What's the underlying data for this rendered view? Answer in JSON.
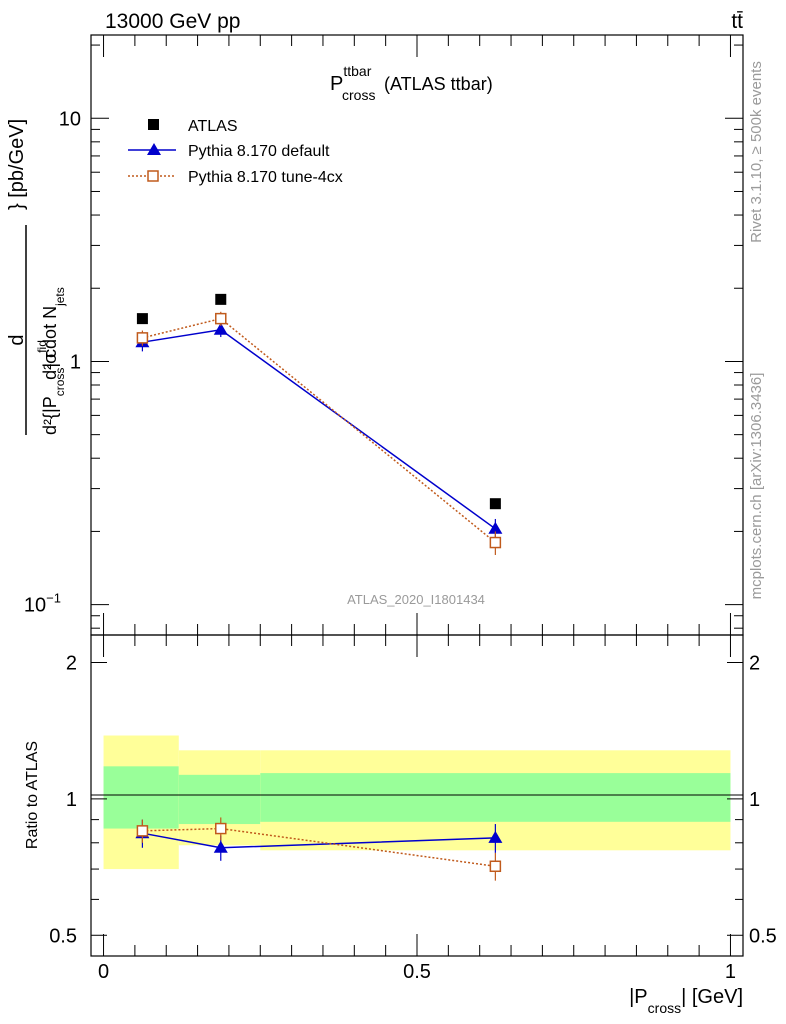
{
  "header": {
    "left": "13000 GeV pp",
    "right": "tt̄"
  },
  "plot_title": {
    "main": "P",
    "sup": "ttbar",
    "sub": "cross",
    "suffix": "(ATLAS ttbar)"
  },
  "side_labels": {
    "rivet": "Rivet 3.1.10, ≥ 500k events",
    "mcplots": "mcplots.cern.ch [arXiv:1306.3436]"
  },
  "watermark": "ATLAS_2020_I1801434",
  "colors": {
    "atlas": "#000000",
    "default": "#0000cc",
    "tune": "#c05a1c",
    "band_inner": "#99ff99",
    "band_outer": "#ffff99"
  },
  "chart_data": [
    {
      "type": "scatter",
      "panel": "main",
      "yscale": "log",
      "ylim": [
        0.075,
        22
      ],
      "xlim": [
        -0.02,
        1.02
      ],
      "ylabel": {
        "num": "d²σ",
        "num_sup": "fid",
        "den_pre": "d²{|P",
        "den_sub": "cross",
        "den_mid": "| cdot N",
        "den_sub2": "jets",
        "unit": "} [pb/GeV]"
      },
      "yticks": [
        {
          "value": 10,
          "label": "10"
        },
        {
          "value": 1,
          "label": "1"
        },
        {
          "value": 0.1,
          "label": "10",
          "sup": "−1"
        }
      ],
      "legend_placement": "top-left",
      "series": [
        {
          "name": "ATLAS",
          "marker": "square",
          "x": [
            0.062,
            0.187,
            0.625
          ],
          "y": [
            1.5,
            1.8,
            0.26
          ]
        },
        {
          "name": "Pythia 8.170 default",
          "marker": "triangle",
          "x": [
            0.062,
            0.187,
            0.625
          ],
          "y": [
            1.2,
            1.35,
            0.205
          ],
          "yerr": [
            0.1,
            0.09,
            0.02
          ]
        },
        {
          "name": "Pythia 8.170 tune-4cx",
          "marker": "open-square",
          "x": [
            0.062,
            0.187,
            0.625
          ],
          "y": [
            1.25,
            1.5,
            0.18
          ],
          "yerr": [
            0.09,
            0.1,
            0.02
          ]
        }
      ]
    },
    {
      "type": "line",
      "panel": "ratio",
      "ylabel": "Ratio to ATLAS",
      "ylim": [
        0.45,
        2.3
      ],
      "xlim": [
        -0.02,
        1.02
      ],
      "xlabel": {
        "pre": "|P",
        "sub": "cross",
        "post": "| [GeV]"
      },
      "xticks": [
        {
          "value": 0,
          "label": "0"
        },
        {
          "value": 0.5,
          "label": "0.5"
        },
        {
          "value": 1,
          "label": "1"
        }
      ],
      "yticks": [
        {
          "value": 0.5,
          "label": "0.5"
        },
        {
          "value": 1,
          "label": "1"
        },
        {
          "value": 2,
          "label": "2"
        }
      ],
      "bands": [
        {
          "x0": 0.0,
          "x1": 0.12,
          "inner": [
            0.86,
            1.18
          ],
          "outer": [
            0.7,
            1.38
          ]
        },
        {
          "x0": 0.12,
          "x1": 0.25,
          "inner": [
            0.88,
            1.13
          ],
          "outer": [
            0.79,
            1.28
          ]
        },
        {
          "x0": 0.25,
          "x1": 1.0,
          "inner": [
            0.89,
            1.14
          ],
          "outer": [
            0.77,
            1.28
          ]
        }
      ],
      "series": [
        {
          "name": "Pythia 8.170 default",
          "x": [
            0.062,
            0.187,
            0.625
          ],
          "y": [
            0.84,
            0.78,
            0.82
          ],
          "yerr": [
            0.06,
            0.05,
            0.06
          ]
        },
        {
          "name": "Pythia 8.170 tune-4cx",
          "x": [
            0.062,
            0.187,
            0.625
          ],
          "y": [
            0.85,
            0.86,
            0.71
          ],
          "yerr": [
            0.05,
            0.05,
            0.05
          ]
        }
      ]
    }
  ]
}
